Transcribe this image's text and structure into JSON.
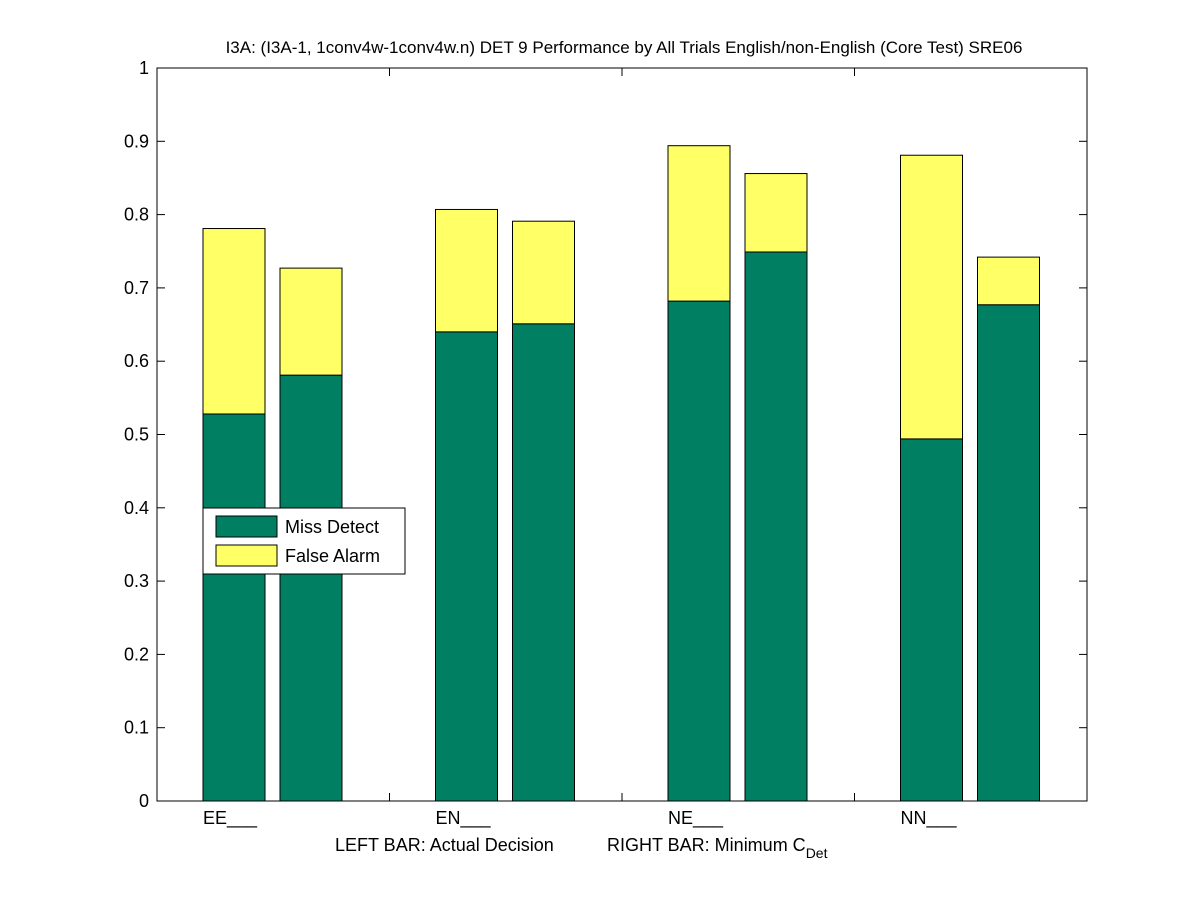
{
  "colors": {
    "miss": "#007f63",
    "false_alarm": "#ffff66",
    "axis": "#000000",
    "background": "#ffffff"
  },
  "chart_data": {
    "type": "bar",
    "stacked": true,
    "title": "I3A: (I3A-1, 1conv4w-1conv4w.n) DET 9 Performance by All Trials English/non-English (Core Test) SRE06",
    "categories": [
      "EE___",
      "EN___",
      "NE___",
      "NN___"
    ],
    "xlabel_left": "LEFT BAR: Actual Decision",
    "xlabel_right_main": "RIGHT BAR: Minimum C",
    "xlabel_right_sub": "Det",
    "ylim": [
      0,
      1
    ],
    "yticks": [
      "0",
      "0.1",
      "0.2",
      "0.3",
      "0.4",
      "0.5",
      "0.6",
      "0.7",
      "0.8",
      "0.9",
      "1"
    ],
    "grid": false,
    "legend_position": "center-left",
    "bar_roles": [
      "Actual Decision",
      "Minimum C_Det"
    ],
    "series": [
      {
        "name": "Miss Detect",
        "color": "#007f63",
        "actual": [
          0.528,
          0.64,
          0.682,
          0.494
        ],
        "minimum": [
          0.581,
          0.651,
          0.749,
          0.677
        ]
      },
      {
        "name": "False Alarm",
        "color": "#ffff66",
        "actual": [
          0.253,
          0.167,
          0.212,
          0.387
        ],
        "minimum": [
          0.146,
          0.14,
          0.107,
          0.065
        ]
      }
    ]
  }
}
